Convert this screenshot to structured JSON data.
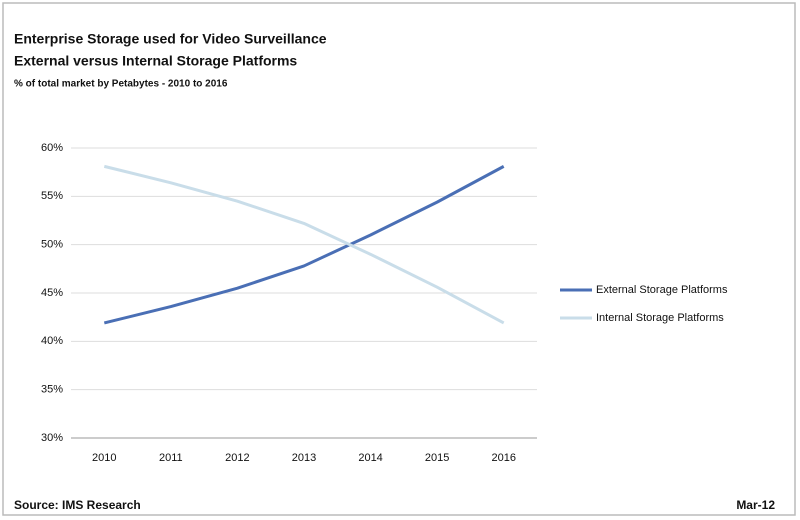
{
  "chart_data": {
    "type": "line",
    "title": "Enterprise Storage used for Video Surveillance",
    "subtitle": "External versus Internal Storage Platforms",
    "caption": "% of total market by Petabytes - 2010 to 2016",
    "source": "Source: IMS Research",
    "date": "Mar-12",
    "categories": [
      "2010",
      "2011",
      "2012",
      "2013",
      "2014",
      "2015",
      "2016"
    ],
    "series": [
      {
        "name": "External Storage Platforms",
        "color": "#4a6fb5",
        "values": [
          41.9,
          43.6,
          45.5,
          47.8,
          51.0,
          54.4,
          58.1
        ]
      },
      {
        "name": "Internal Storage Platforms",
        "color": "#c9dde9",
        "values": [
          58.1,
          56.4,
          54.5,
          52.2,
          49.0,
          45.6,
          41.9
        ]
      }
    ],
    "ylim": [
      30,
      60
    ],
    "yticks": [
      {
        "value": 30,
        "label": "30%"
      },
      {
        "value": 35,
        "label": "35%"
      },
      {
        "value": 40,
        "label": "40%"
      },
      {
        "value": 45,
        "label": "45%"
      },
      {
        "value": 50,
        "label": "50%"
      },
      {
        "value": 55,
        "label": "55%"
      },
      {
        "value": 60,
        "label": "60%"
      }
    ],
    "grid": true,
    "legend": "right"
  }
}
